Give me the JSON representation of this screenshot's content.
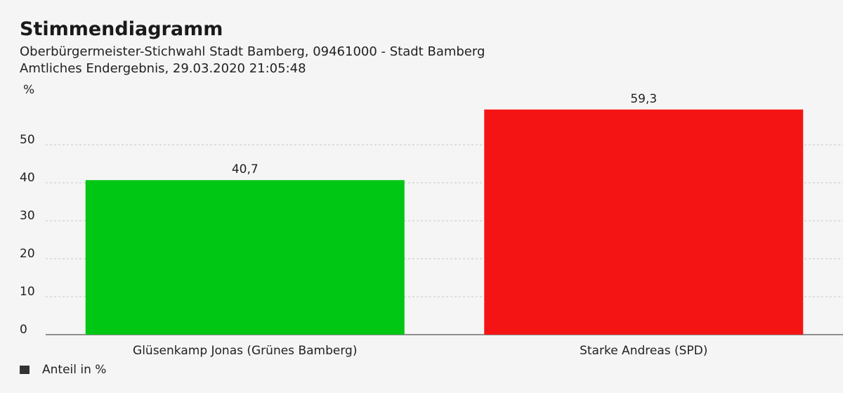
{
  "header": {
    "title": "Stimmendiagramm",
    "subtitle": "Oberbürgermeister-Stichwahl Stadt Bamberg, 09461000 - Stadt Bamberg",
    "status": "Amtliches Endergebnis, 29.03.2020 21:05:48"
  },
  "legend": {
    "label": "Anteil in %",
    "swatch_color": "#333333"
  },
  "chart_data": {
    "type": "bar",
    "categories": [
      "Glüsenkamp Jonas (Grünes Bamberg)",
      "Starke Andreas (SPD)"
    ],
    "values": [
      40.7,
      59.3
    ],
    "value_labels": [
      "40,7",
      "59,3"
    ],
    "colors": [
      "#00c614",
      "#f51414"
    ],
    "ylabel": "%",
    "ylim": [
      0,
      60
    ],
    "yticks": [
      0,
      10,
      20,
      30,
      40,
      50
    ],
    "grid": true,
    "legend_position": "bottom-left"
  }
}
